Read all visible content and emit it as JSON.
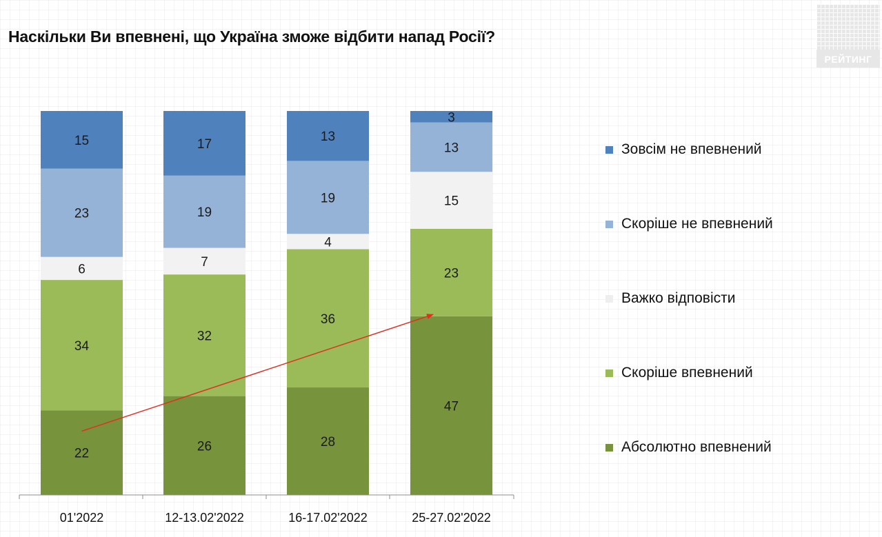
{
  "title": "Наскільки Ви впевнені, що Україна зможе відбити напад Росії?",
  "logo": {
    "text": "РЕЙТИНГ"
  },
  "chart_data": {
    "type": "bar",
    "stacked": true,
    "title": "Наскільки Ви впевнені, що Україна зможе відбити напад Росії?",
    "xlabel": "",
    "ylabel": "",
    "ylim": [
      0,
      100
    ],
    "grid": false,
    "legend_position": "right",
    "categories": [
      "01'2022",
      "12-13.02'2022",
      "16-17.02'2022",
      "25-27.02'2022"
    ],
    "series": [
      {
        "name": "Абсолютно впевнений",
        "color": "#77933c",
        "values": [
          22,
          26,
          28,
          47
        ]
      },
      {
        "name": "Скоріше впевнений",
        "color": "#9bbb59",
        "values": [
          34,
          32,
          36,
          23
        ]
      },
      {
        "name": "Важко відповісти",
        "color": "#f2f2f2",
        "values": [
          6,
          7,
          4,
          15
        ]
      },
      {
        "name": "Скоріше не впевнений",
        "color": "#95b3d7",
        "values": [
          23,
          19,
          19,
          13
        ]
      },
      {
        "name": "Зовсім не впевнений",
        "color": "#4f81bd",
        "values": [
          15,
          17,
          13,
          3
        ]
      }
    ],
    "annotations": [
      {
        "type": "arrow",
        "from": [
          "01'2022",
          22
        ],
        "to": [
          "25-27.02'2022",
          47
        ],
        "color": "#e03020"
      }
    ]
  }
}
